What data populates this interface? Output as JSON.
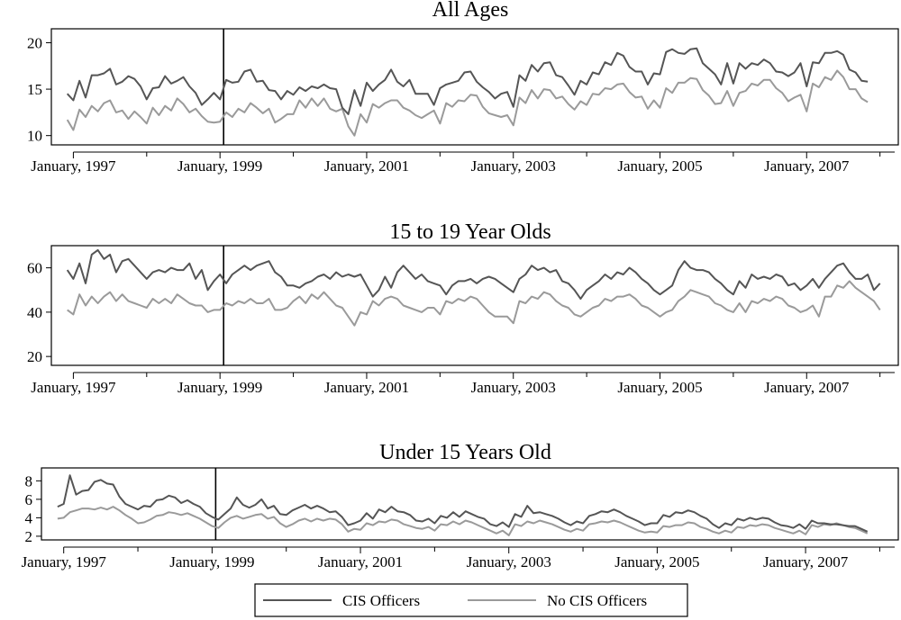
{
  "chart_data": [
    {
      "type": "line",
      "title": "All Ages",
      "ylim": [
        9,
        21.5
      ],
      "yticks": [
        10,
        15,
        20
      ],
      "xticks": [
        1997,
        1999,
        2001,
        2003,
        2005,
        2007
      ],
      "xtick_labels": [
        "January, 1997",
        "January, 1999",
        "January, 2001",
        "January, 2003",
        "January, 2005",
        "January, 2007"
      ],
      "event_x": 1999,
      "series": [
        {
          "name": "CIS Officers",
          "color": "#555555",
          "x_start": 1996.917,
          "step_months": 1,
          "values": [
            14.5,
            13.8,
            15.9,
            14.1,
            16.5,
            16.5,
            16.7,
            17.2,
            15.5,
            15.8,
            16.4,
            16.1,
            15.3,
            13.9,
            15.1,
            15.2,
            16.4,
            15.6,
            15.9,
            16.3,
            15.3,
            14.6,
            13.3,
            13.9,
            14.6,
            13.9,
            16.0,
            15.7,
            15.8,
            16.9,
            17.1,
            15.8,
            15.9,
            14.9,
            14.8,
            13.9,
            14.8,
            14.4,
            15.2,
            14.8,
            15.3,
            15.1,
            15.5,
            15.1,
            15.0,
            13.0,
            12.3,
            14.9,
            13.2,
            15.7,
            14.8,
            15.5,
            16.0,
            17.1,
            15.8,
            15.3,
            16.0,
            14.5,
            14.5,
            14.5,
            13.3,
            15.1,
            15.5,
            15.7,
            15.9,
            16.8,
            16.9,
            15.8,
            15.2,
            14.7,
            14.0,
            14.5,
            14.7,
            13.1,
            16.5,
            15.9,
            17.6,
            16.9,
            17.8,
            17.9,
            16.5,
            16.3,
            15.4,
            14.4,
            15.9,
            15.5,
            16.8,
            16.6,
            17.9,
            17.6,
            18.9,
            18.6,
            17.4,
            16.9,
            16.9,
            15.5,
            16.7,
            16.6,
            19.0,
            19.3,
            18.9,
            18.8,
            19.3,
            19.4,
            17.8,
            17.2,
            16.6,
            15.5,
            17.8,
            15.6,
            17.8,
            17.2,
            17.8,
            17.6,
            18.2,
            17.8,
            16.9,
            16.8,
            16.4,
            16.8,
            17.8,
            15.3,
            17.9,
            17.8,
            18.9,
            18.9,
            19.1,
            18.7,
            17.1,
            16.8,
            15.9,
            15.8
          ]
        },
        {
          "name": "No CIS Officers",
          "color": "#9a9a9a",
          "x_start": 1996.917,
          "step_months": 1,
          "values": [
            11.7,
            10.6,
            12.8,
            12.0,
            13.2,
            12.6,
            13.5,
            13.8,
            12.5,
            12.7,
            11.8,
            12.6,
            12.0,
            11.3,
            13.0,
            12.2,
            13.2,
            12.7,
            14.0,
            13.4,
            12.5,
            12.9,
            12.1,
            11.5,
            11.4,
            11.5,
            12.5,
            12.0,
            12.9,
            12.5,
            13.5,
            13.0,
            12.4,
            12.9,
            11.4,
            11.8,
            12.3,
            12.3,
            13.8,
            13.0,
            14.0,
            13.2,
            14.0,
            12.9,
            12.6,
            12.9,
            11.0,
            10.0,
            12.3,
            11.4,
            13.4,
            13.0,
            13.5,
            13.8,
            13.8,
            13.0,
            12.7,
            12.2,
            11.9,
            12.3,
            12.7,
            11.3,
            13.5,
            13.1,
            13.8,
            13.7,
            14.4,
            14.3,
            13.1,
            12.4,
            12.2,
            12.0,
            12.2,
            11.1,
            14.1,
            13.5,
            14.9,
            14.0,
            15.0,
            14.9,
            14.0,
            14.2,
            13.4,
            12.8,
            13.7,
            13.3,
            14.5,
            14.4,
            15.1,
            15.0,
            15.5,
            15.6,
            14.7,
            14.1,
            14.2,
            12.9,
            13.8,
            13.0,
            15.1,
            14.6,
            15.7,
            15.7,
            16.2,
            16.1,
            14.9,
            14.3,
            13.4,
            13.5,
            14.8,
            13.2,
            14.6,
            14.8,
            15.6,
            15.4,
            16.0,
            16.0,
            15.1,
            14.6,
            13.7,
            14.1,
            14.4,
            12.6,
            15.6,
            15.2,
            16.3,
            16.0,
            17.0,
            16.3,
            15.0,
            15.0,
            14.0,
            13.6
          ]
        }
      ]
    },
    {
      "type": "line",
      "title": "15 to 19 Year Olds",
      "ylim": [
        16,
        70
      ],
      "yticks": [
        20,
        40,
        60
      ],
      "xticks": [
        1997,
        1999,
        2001,
        2003,
        2005,
        2007
      ],
      "xtick_labels": [
        "January, 1997",
        "January, 1999",
        "January, 2001",
        "January, 2003",
        "January, 2005",
        "January, 2007"
      ],
      "event_x": 1999,
      "series": [
        {
          "name": "CIS Officers",
          "color": "#555555",
          "x_start": 1996.917,
          "step_months": 1,
          "values": [
            59,
            55,
            62,
            53,
            66,
            68,
            64,
            66,
            58,
            63,
            64,
            61,
            58,
            55,
            58,
            59,
            58,
            60,
            59,
            59,
            62,
            55,
            59,
            50,
            54,
            57,
            53,
            57,
            59,
            61,
            59,
            61,
            62,
            63,
            58,
            56,
            52,
            52,
            51,
            53,
            54,
            56,
            57,
            55,
            58,
            56,
            57,
            56,
            57,
            52,
            47,
            50,
            56,
            51,
            58,
            61,
            58,
            55,
            57,
            54,
            53,
            52,
            48,
            52,
            54,
            54,
            55,
            53,
            55,
            56,
            55,
            53,
            51,
            49,
            55,
            57,
            61,
            59,
            60,
            58,
            59,
            54,
            53,
            50,
            46,
            50,
            52,
            54,
            57,
            55,
            58,
            57,
            60,
            58,
            55,
            53,
            50,
            48,
            50,
            52,
            59,
            63,
            60,
            59,
            59,
            58,
            55,
            53,
            50,
            48,
            54,
            51,
            57,
            55,
            56,
            55,
            57,
            56,
            52,
            53,
            50,
            52,
            55,
            51,
            55,
            58,
            61,
            62,
            58,
            55,
            55,
            57,
            50,
            53
          ]
        },
        {
          "name": "No CIS Officers",
          "color": "#9a9a9a",
          "x_start": 1996.917,
          "step_months": 1,
          "values": [
            41,
            39,
            48,
            43,
            47,
            44,
            47,
            49,
            45,
            48,
            45,
            44,
            43,
            42,
            46,
            44,
            46,
            44,
            48,
            46,
            44,
            43,
            43,
            40,
            41,
            41,
            44,
            43,
            45,
            44,
            46,
            44,
            44,
            46,
            41,
            41,
            42,
            45,
            47,
            44,
            48,
            46,
            49,
            46,
            43,
            42,
            38,
            34,
            40,
            39,
            45,
            43,
            46,
            47,
            46,
            43,
            42,
            41,
            40,
            42,
            42,
            39,
            45,
            44,
            46,
            45,
            47,
            46,
            43,
            40,
            38,
            38,
            38,
            35,
            45,
            44,
            47,
            46,
            49,
            48,
            45,
            43,
            42,
            39,
            38,
            40,
            42,
            43,
            46,
            45,
            47,
            47,
            48,
            46,
            43,
            42,
            40,
            38,
            40,
            41,
            45,
            47,
            50,
            49,
            48,
            47,
            44,
            43,
            41,
            40,
            44,
            40,
            45,
            44,
            46,
            45,
            47,
            46,
            43,
            42,
            40,
            41,
            43,
            38,
            47,
            47,
            52,
            51,
            54,
            51,
            49,
            47,
            45,
            41
          ]
        }
      ]
    },
    {
      "type": "line",
      "title": "Under 15 Years Old",
      "ylim": [
        1.6,
        9.4
      ],
      "yticks": [
        2,
        4,
        6,
        8
      ],
      "xticks": [
        1997,
        1999,
        2001,
        2003,
        2005,
        2007
      ],
      "xtick_labels": [
        "January, 1997",
        "January, 1999",
        "January, 2001",
        "January, 2003",
        "January, 2005",
        "January, 2007"
      ],
      "event_x": 1999,
      "series": [
        {
          "name": "CIS Officers",
          "color": "#555555",
          "x_start": 1996.917,
          "step_months": 1,
          "values": [
            5.2,
            5.5,
            8.6,
            6.5,
            6.9,
            7.0,
            7.9,
            8.1,
            7.7,
            7.6,
            6.3,
            5.5,
            5.2,
            4.9,
            5.3,
            5.2,
            5.9,
            6.0,
            6.4,
            6.2,
            5.6,
            5.9,
            5.5,
            5.2,
            4.5,
            4.1,
            3.8,
            4.4,
            5.0,
            6.2,
            5.4,
            5.1,
            5.4,
            6.0,
            5.0,
            5.3,
            4.4,
            4.3,
            4.8,
            5.1,
            5.4,
            5.0,
            5.3,
            5.0,
            4.6,
            4.7,
            4.1,
            3.2,
            3.4,
            3.7,
            4.5,
            3.9,
            4.9,
            4.6,
            5.2,
            4.7,
            4.6,
            4.3,
            3.7,
            3.6,
            3.9,
            3.4,
            4.2,
            4.0,
            4.6,
            4.1,
            4.7,
            4.4,
            4.1,
            3.9,
            3.3,
            3.1,
            3.5,
            3.0,
            4.4,
            4.1,
            5.3,
            4.5,
            4.6,
            4.4,
            4.2,
            3.9,
            3.5,
            3.2,
            3.6,
            3.4,
            4.2,
            4.4,
            4.7,
            4.6,
            4.9,
            4.6,
            4.2,
            3.9,
            3.6,
            3.2,
            3.4,
            3.4,
            4.3,
            4.1,
            4.6,
            4.5,
            4.8,
            4.6,
            4.2,
            3.9,
            3.3,
            2.9,
            3.4,
            3.2,
            3.9,
            3.7,
            4.0,
            3.8,
            4.0,
            3.9,
            3.5,
            3.2,
            3.1,
            2.9,
            3.3,
            2.8,
            3.7,
            3.4,
            3.4,
            3.3,
            3.3,
            3.2,
            3.1,
            3.1,
            2.8,
            2.5
          ]
        },
        {
          "name": "No CIS Officers",
          "color": "#9a9a9a",
          "x_start": 1996.917,
          "step_months": 1,
          "values": [
            3.9,
            4.0,
            4.6,
            4.8,
            5.0,
            5.0,
            4.9,
            5.1,
            4.9,
            5.2,
            4.8,
            4.3,
            3.9,
            3.4,
            3.5,
            3.8,
            4.2,
            4.3,
            4.6,
            4.5,
            4.3,
            4.5,
            4.2,
            3.9,
            3.5,
            3.1,
            2.9,
            3.5,
            4.0,
            4.2,
            3.9,
            4.1,
            4.3,
            4.4,
            3.9,
            4.1,
            3.4,
            3.0,
            3.3,
            3.7,
            3.9,
            3.6,
            3.9,
            3.7,
            3.9,
            3.8,
            3.3,
            2.5,
            2.8,
            2.7,
            3.4,
            3.2,
            3.6,
            3.5,
            3.8,
            3.7,
            3.3,
            3.1,
            2.9,
            2.8,
            3.0,
            2.6,
            3.3,
            3.2,
            3.6,
            3.3,
            3.7,
            3.5,
            3.2,
            2.9,
            2.6,
            2.3,
            2.6,
            2.1,
            3.3,
            3.1,
            3.6,
            3.4,
            3.7,
            3.5,
            3.3,
            3.0,
            2.7,
            2.5,
            2.8,
            2.6,
            3.3,
            3.4,
            3.6,
            3.5,
            3.7,
            3.5,
            3.2,
            2.9,
            2.6,
            2.4,
            2.5,
            2.4,
            3.1,
            3.0,
            3.2,
            3.2,
            3.5,
            3.4,
            3.0,
            2.8,
            2.5,
            2.3,
            2.6,
            2.4,
            3.0,
            2.9,
            3.2,
            3.1,
            3.3,
            3.2,
            2.9,
            2.7,
            2.5,
            2.3,
            2.6,
            2.2,
            3.2,
            3.0,
            3.3,
            3.2,
            3.4,
            3.2,
            3.0,
            2.9,
            2.6,
            2.3
          ]
        }
      ]
    }
  ],
  "legend": {
    "placement": "bottom-center",
    "entries": [
      {
        "label": "CIS Officers",
        "color": "#555555"
      },
      {
        "label": "No CIS Officers",
        "color": "#9a9a9a"
      }
    ]
  }
}
